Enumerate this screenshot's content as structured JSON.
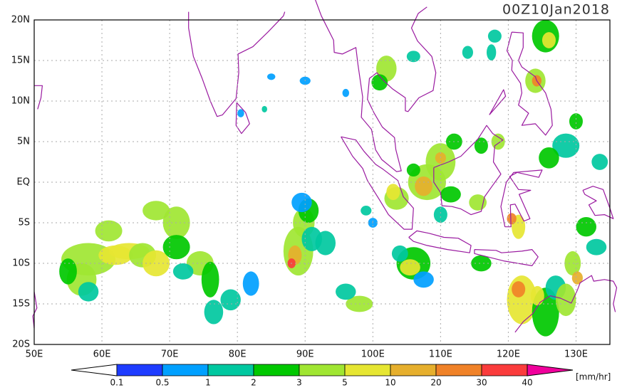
{
  "title": "00Z10Jan2018",
  "lat_labels": [
    "20N",
    "15N",
    "10N",
    "5N",
    "EQ",
    "5S",
    "10S",
    "15S",
    "20S"
  ],
  "lon_labels": [
    "50E",
    "60E",
    "70E",
    "80E",
    "90E",
    "100E",
    "110E",
    "120E",
    "130E"
  ],
  "colorbar": {
    "labels": [
      "0.1",
      "0.5",
      "1",
      "2",
      "3",
      "5",
      "10",
      "20",
      "30",
      "40"
    ],
    "colors": [
      "#ffffff",
      "#1e3cff",
      "#00a0ff",
      "#00c8a0",
      "#00c800",
      "#a0e632",
      "#e6e632",
      "#e6af2d",
      "#f08228",
      "#fa3c3c",
      "#f0009c"
    ],
    "unit": "[mm/hr]"
  }
}
